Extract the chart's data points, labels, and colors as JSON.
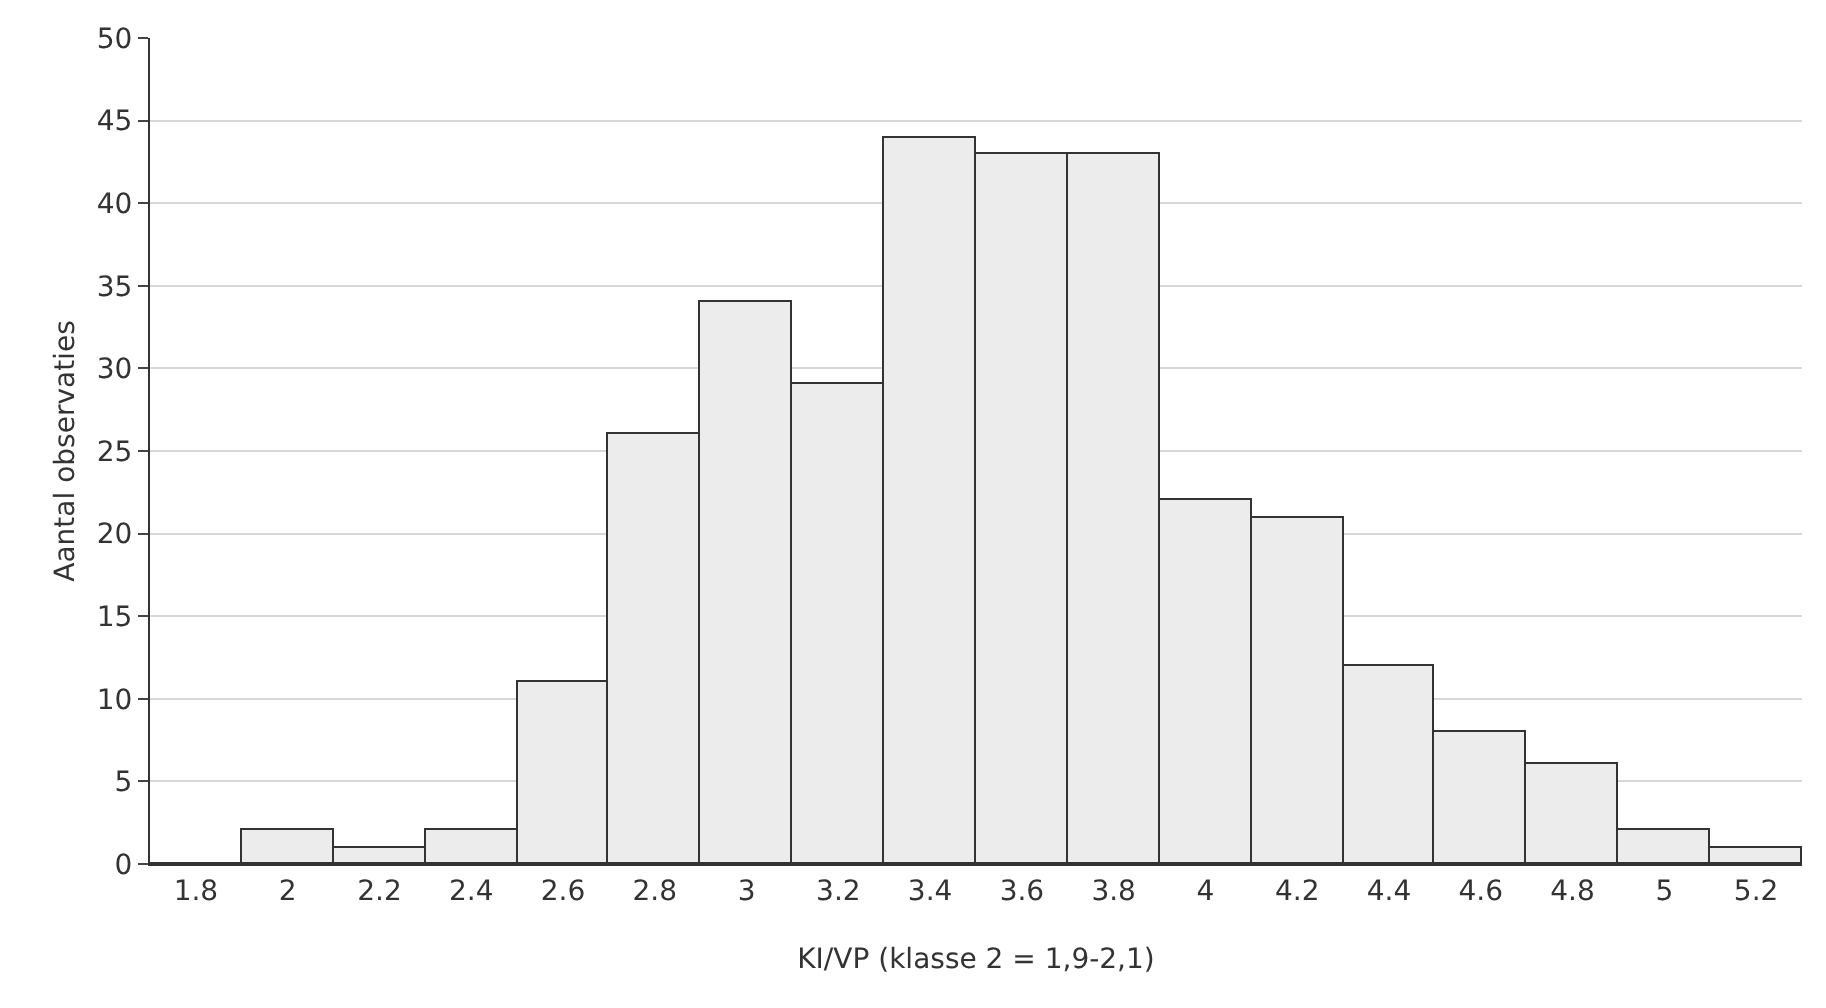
{
  "chart_data": {
    "type": "bar",
    "xlabel": "KI/VP (klasse 2 = 1,9-2,1)",
    "ylabel": "Aantal observaties",
    "categories": [
      "1.8",
      "2",
      "2.2",
      "2.4",
      "2.6",
      "2.8",
      "3",
      "3.2",
      "3.4",
      "3.6",
      "3.8",
      "4",
      "4.2",
      "4.4",
      "4.6",
      "4.8",
      "5",
      "5.2"
    ],
    "values": [
      0,
      2,
      1,
      2,
      11,
      26,
      34,
      29,
      44,
      43,
      43,
      22,
      21,
      12,
      8,
      6,
      2,
      1
    ],
    "color": "#ececec",
    "ylim": [
      0,
      50
    ],
    "yticks": [
      0,
      5,
      10,
      15,
      20,
      25,
      30,
      35,
      40,
      45,
      50
    ],
    "grid": "y",
    "legend": false
  }
}
